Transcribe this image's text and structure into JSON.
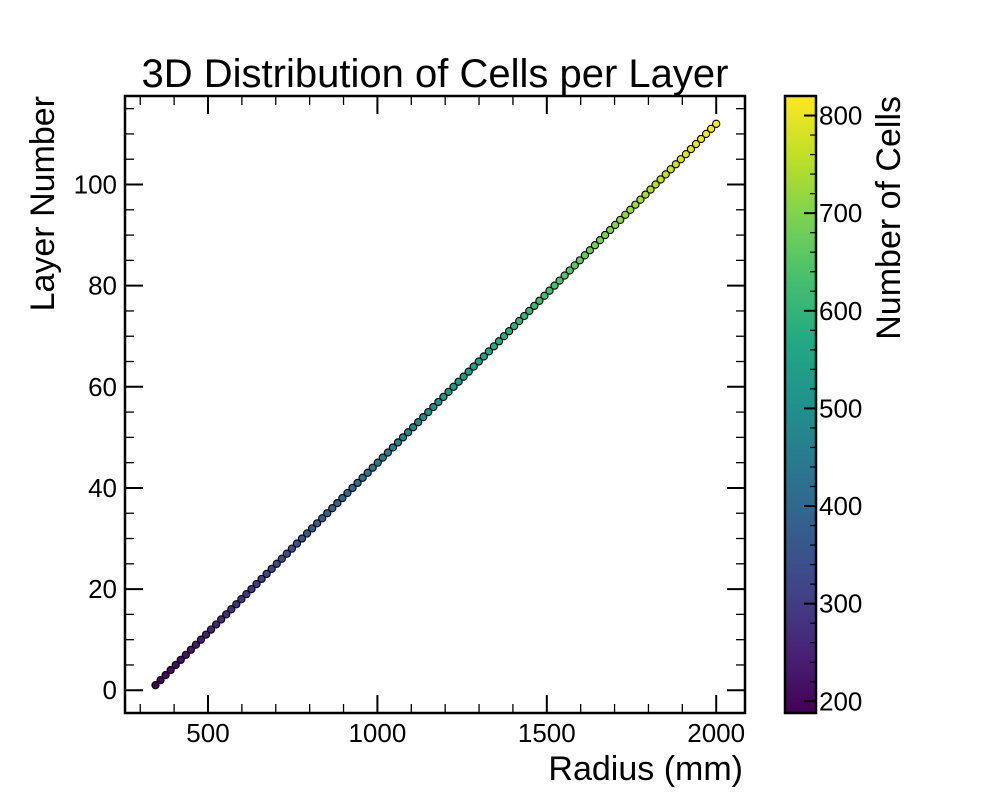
{
  "chart_data": {
    "type": "scatter",
    "title": "3D Distribution of Cells per Layer",
    "xlabel": "Radius (mm)",
    "ylabel": "Layer Number",
    "xlim": [
      255,
      2085
    ],
    "ylim": [
      -4.5,
      117.5
    ],
    "xticks": [
      500,
      1000,
      1500,
      2000
    ],
    "yticks": [
      0,
      20,
      40,
      60,
      80,
      100
    ],
    "x_minor_step": 100,
    "y_minor_step": 5,
    "grid": false,
    "legend": "none",
    "colorbar": {
      "label": "Number of Cells",
      "cmap": "viridis",
      "range": [
        188,
        820
      ],
      "ticks": [
        200,
        300,
        400,
        500,
        600,
        700,
        800
      ],
      "minor_step": 20
    },
    "marker_edge_color": "#000000",
    "points": {
      "layer_start": 1,
      "layer_end": 112,
      "radius_start": 345,
      "radius_end": 2000,
      "cells_start": 188,
      "cells_end": 820
    }
  }
}
